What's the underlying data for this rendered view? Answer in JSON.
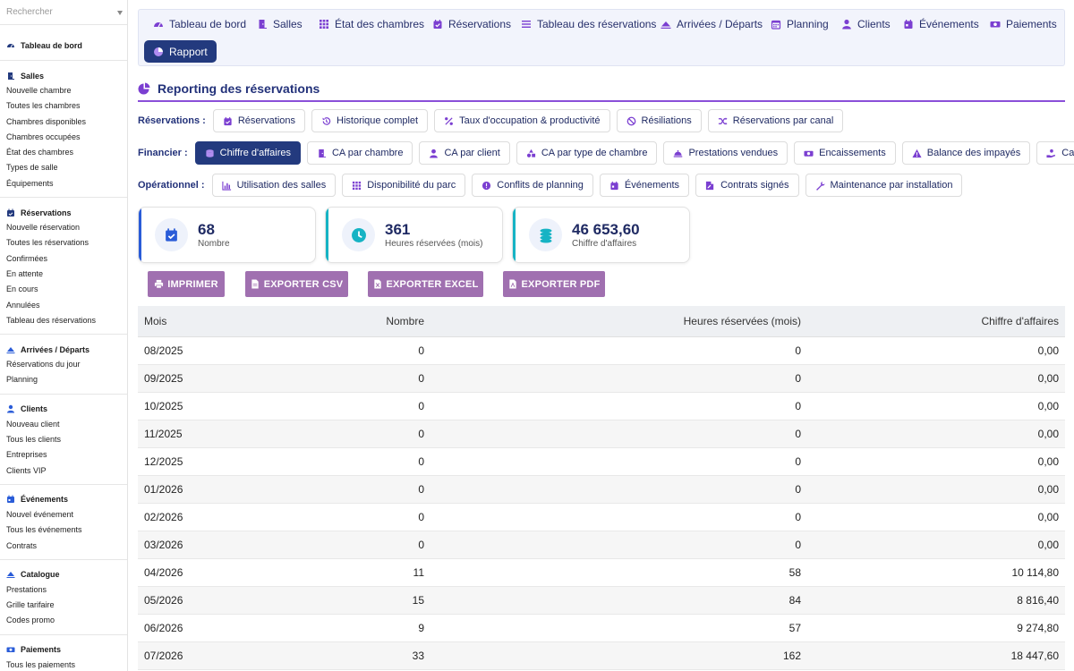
{
  "colors": {
    "brand": "#233a7e",
    "accent": "#8a4fd9",
    "export_button": "#a070b0",
    "stat_blue": "#2a5cd8",
    "stat_teal": "#16b3c4"
  },
  "sidebar": {
    "search_placeholder": "Rechercher",
    "sections": [
      {
        "title": "Tableau de bord",
        "icon": "dashboard-icon",
        "items": []
      },
      {
        "title": "Salles",
        "icon": "door-icon",
        "items": [
          "Nouvelle chambre",
          "Toutes les chambres",
          "Chambres disponibles",
          "Chambres occupées",
          "État des chambres",
          "Types de salle",
          "Équipements"
        ]
      },
      {
        "title": "Réservations",
        "icon": "calendar-check-icon",
        "items": [
          "Nouvelle réservation",
          "Toutes les réservations",
          "Confirmées",
          "En attente",
          "En cours",
          "Annulées",
          "Tableau des réservations"
        ]
      },
      {
        "title": "Arrivées / Départs",
        "icon": "plane-icon",
        "items": [
          "Réservations du jour",
          "Planning"
        ]
      },
      {
        "title": "Clients",
        "icon": "user-icon",
        "items": [
          "Nouveau client",
          "Tous les clients",
          "Entreprises",
          "Clients VIP"
        ]
      },
      {
        "title": "Événements",
        "icon": "calendar-icon",
        "items": [
          "Nouvel événement",
          "Tous les événements",
          "Contrats"
        ]
      },
      {
        "title": "Catalogue",
        "icon": "plane-icon",
        "items": [
          "Prestations",
          "Grille tarifaire",
          "Codes promo"
        ]
      },
      {
        "title": "Paiements",
        "icon": "money-icon",
        "items": [
          "Tous les paiements"
        ]
      }
    ]
  },
  "nav": {
    "items": [
      {
        "label": "Tableau de bord",
        "icon": "dashboard-icon"
      },
      {
        "label": "Salles",
        "icon": "door-icon"
      },
      {
        "label": "État des chambres",
        "icon": "grid-icon"
      },
      {
        "label": "Réservations",
        "icon": "calendar-check-icon"
      },
      {
        "label": "Tableau des réservations",
        "icon": "list-icon"
      },
      {
        "label": "Arrivées / Départs",
        "icon": "plane-icon"
      },
      {
        "label": "Planning",
        "icon": "calendar-grid-icon"
      },
      {
        "label": "Clients",
        "icon": "user-icon"
      },
      {
        "label": "Événements",
        "icon": "calendar-icon"
      },
      {
        "label": "Paiements",
        "icon": "money-icon"
      },
      {
        "label": "Rapport",
        "icon": "pie-chart-icon",
        "active": true
      }
    ]
  },
  "page_title": "Reporting des réservations",
  "categories": {
    "reservations": {
      "label": "Réservations :",
      "items": [
        {
          "label": "Réservations",
          "icon": "calendar-check-icon"
        },
        {
          "label": "Historique complet",
          "icon": "history-icon"
        },
        {
          "label": "Taux d'occupation & productivité",
          "icon": "percent-icon"
        },
        {
          "label": "Résiliations",
          "icon": "ban-icon"
        },
        {
          "label": "Réservations par canal",
          "icon": "shuffle-icon"
        }
      ]
    },
    "financier": {
      "label": "Financier :",
      "items": [
        {
          "label": "Chiffre d'affaires",
          "icon": "coins-icon",
          "active": true
        },
        {
          "label": "CA par chambre",
          "icon": "door-icon"
        },
        {
          "label": "CA par client",
          "icon": "user-icon"
        },
        {
          "label": "CA par type de chambre",
          "icon": "shapes-icon"
        },
        {
          "label": "Prestations vendues",
          "icon": "bell-icon"
        },
        {
          "label": "Encaissements",
          "icon": "money-icon"
        },
        {
          "label": "Balance des impayés",
          "icon": "warning-icon"
        },
        {
          "label": "Cautions",
          "icon": "hand-coin-icon"
        }
      ]
    },
    "operationnel": {
      "label": "Opérationnel :",
      "items": [
        {
          "label": "Utilisation des salles",
          "icon": "bar-chart-icon"
        },
        {
          "label": "Disponibilité du parc",
          "icon": "grid-icon"
        },
        {
          "label": "Conflits de planning",
          "icon": "alert-circle-icon"
        },
        {
          "label": "Événements",
          "icon": "calendar-icon"
        },
        {
          "label": "Contrats signés",
          "icon": "signature-icon"
        },
        {
          "label": "Maintenance par installation",
          "icon": "wrench-icon"
        }
      ]
    }
  },
  "stats": [
    {
      "value": "68",
      "label": "Nombre",
      "icon": "calendar-check-icon"
    },
    {
      "value": "361",
      "label": "Heures réservées (mois)",
      "icon": "clock-icon"
    },
    {
      "value": "46 653,60",
      "label": "Chiffre d'affaires",
      "icon": "coins-icon"
    }
  ],
  "exports": [
    {
      "label": "IMPRIMER",
      "icon": "print-icon"
    },
    {
      "label": "EXPORTER CSV",
      "icon": "file-icon"
    },
    {
      "label": "EXPORTER EXCEL",
      "icon": "file-excel-icon"
    },
    {
      "label": "EXPORTER PDF",
      "icon": "file-pdf-icon"
    }
  ],
  "table": {
    "columns": [
      "Mois",
      "Nombre",
      "Heures réservées (mois)",
      "Chiffre d'affaires"
    ],
    "rows": [
      [
        "08/2025",
        "0",
        "0",
        "0,00"
      ],
      [
        "09/2025",
        "0",
        "0",
        "0,00"
      ],
      [
        "10/2025",
        "0",
        "0",
        "0,00"
      ],
      [
        "11/2025",
        "0",
        "0",
        "0,00"
      ],
      [
        "12/2025",
        "0",
        "0",
        "0,00"
      ],
      [
        "01/2026",
        "0",
        "0",
        "0,00"
      ],
      [
        "02/2026",
        "0",
        "0",
        "0,00"
      ],
      [
        "03/2026",
        "0",
        "0",
        "0,00"
      ],
      [
        "04/2026",
        "11",
        "58",
        "10 114,80"
      ],
      [
        "05/2026",
        "15",
        "84",
        "8 816,40"
      ],
      [
        "06/2026",
        "9",
        "57",
        "9 274,80"
      ],
      [
        "07/2026",
        "33",
        "162",
        "18 447,60"
      ]
    ]
  }
}
